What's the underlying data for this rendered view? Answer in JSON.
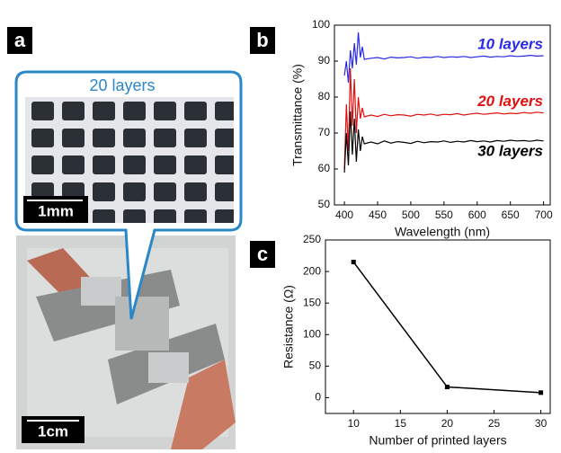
{
  "panels": {
    "a": "a",
    "b": "b",
    "c": "c"
  },
  "photo": {
    "inset_title": "20 layers",
    "scale_bar_inset": "1mm",
    "scale_bar_photo": "1cm"
  },
  "chart_data": [
    {
      "type": "line",
      "x_label": "Wavelength (nm)",
      "y_label": "Transmittance (%)",
      "x": [
        400,
        403,
        406,
        409,
        412,
        415,
        418,
        421,
        424,
        427,
        430,
        440,
        450,
        460,
        470,
        480,
        490,
        500,
        510,
        520,
        530,
        540,
        550,
        560,
        570,
        580,
        590,
        600,
        610,
        620,
        630,
        640,
        650,
        660,
        670,
        680,
        690,
        700
      ],
      "series": [
        {
          "name": "10 layers",
          "color": "#2a2ae6",
          "values": [
            86,
            90,
            84,
            93,
            88,
            95,
            89,
            98,
            91,
            94,
            90.5,
            90.8,
            91,
            90.6,
            91.1,
            90.9,
            91,
            91.2,
            90.8,
            91.1,
            91,
            91.3,
            91,
            91.2,
            91.1,
            91.3,
            91,
            91.2,
            91.4,
            91.1,
            91.3,
            91.2,
            91.5,
            91.3,
            91.4,
            91.6,
            91.4,
            91.5
          ]
        },
        {
          "name": "20 layers",
          "color": "#e01010",
          "values": [
            60,
            78,
            65,
            88,
            72,
            85,
            70,
            80,
            74,
            77,
            74.5,
            75,
            74.6,
            75.2,
            74.8,
            75.1,
            75,
            74.7,
            75.2,
            75,
            75.3,
            74.9,
            75.2,
            75.1,
            75.4,
            75,
            75.3,
            75.5,
            75.2,
            75.4,
            75.6,
            75.3,
            75.5,
            75.4,
            75.7,
            75.5,
            75.8,
            75.6
          ]
        },
        {
          "name": "30 layers",
          "color": "#000000",
          "values": [
            59,
            70,
            61,
            76,
            64,
            74,
            62,
            71,
            65,
            69,
            67,
            67.5,
            67,
            67.8,
            67.2,
            67.6,
            67.4,
            67.1,
            67.7,
            67.3,
            67.6,
            67.5,
            67.8,
            67.4,
            67.7,
            67.5,
            67.9,
            67.6,
            67.8,
            67.5,
            67.9,
            67.7,
            68,
            67.8,
            67.9,
            67.7,
            68,
            67.8
          ]
        }
      ],
      "xlim": [
        385,
        710
      ],
      "ylim": [
        50,
        100
      ],
      "xticks": [
        400,
        450,
        500,
        550,
        600,
        650,
        700
      ],
      "yticks": [
        50,
        60,
        70,
        80,
        90,
        100
      ]
    },
    {
      "type": "line",
      "markers": true,
      "x_label": "Number of printed layers",
      "y_label": "Resistance (Ω)",
      "x": [
        10,
        20,
        30
      ],
      "series": [
        {
          "color": "#000000",
          "values": [
            215,
            17,
            8
          ]
        }
      ],
      "xlim": [
        7,
        31
      ],
      "ylim": [
        -25,
        250
      ],
      "xticks": [
        10,
        15,
        20,
        25,
        30
      ],
      "yticks": [
        0,
        50,
        100,
        150,
        200,
        250
      ]
    }
  ]
}
